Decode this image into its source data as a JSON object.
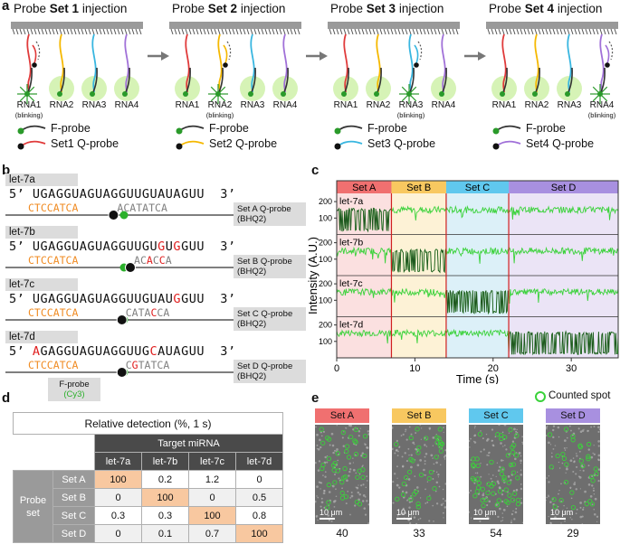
{
  "panels": {
    "a": "a",
    "b": "b",
    "c": "c",
    "d": "d",
    "e": "e"
  },
  "panel_a": {
    "steps": [
      {
        "prefix": "Probe ",
        "bold": "Set 1",
        "suffix": " injection",
        "blink": 0,
        "fprobe": "F-probe",
        "qprobe": "Set1 Q-probe",
        "qcolor": "#e03a3a"
      },
      {
        "prefix": "Probe ",
        "bold": "Set 2",
        "suffix": " injection",
        "blink": 1,
        "fprobe": "F-probe",
        "qprobe": "Set2 Q-probe",
        "qcolor": "#f5b800"
      },
      {
        "prefix": "Probe ",
        "bold": "Set 3",
        "suffix": " injection",
        "blink": 2,
        "fprobe": "F-probe",
        "qprobe": "Set3 Q-probe",
        "qcolor": "#38b6e0"
      },
      {
        "prefix": "Probe ",
        "bold": "Set 4",
        "suffix": " injection",
        "blink": 3,
        "fprobe": "F-probe",
        "qprobe": "Set4 Q-probe",
        "qcolor": "#a070d8"
      }
    ],
    "rna_labels": [
      "RNA1",
      "RNA2",
      "RNA3",
      "RNA4"
    ],
    "rna_colors": [
      "#e03a3a",
      "#f5b800",
      "#38b6e0",
      "#a070d8"
    ],
    "blinking": "(blinking)"
  },
  "panel_b": {
    "rows": [
      {
        "name": "let-7a",
        "target": [
          "UGAGGUAGUAGGUUGUAUAGUU"
        ],
        "red_idx": [],
        "f": "CTCCATCA",
        "q": "ACATATCA",
        "q_red": [],
        "qbox": [
          "Set A Q-probe",
          "(BHQ2)"
        ]
      },
      {
        "name": "let-7b",
        "target": [
          "UGAGGUAGUAGGUUGUGUGGUU"
        ],
        "red_idx": [
          16,
          18
        ],
        "f": "CTCCATCA",
        "q": "ACACCA",
        "q_red": [
          2,
          4
        ],
        "qbox": [
          "Set B Q-probe",
          "(BHQ2)"
        ]
      },
      {
        "name": "let-7c",
        "target": [
          "UGAGGUAGUAGGUUGUAUGGUU"
        ],
        "red_idx": [
          18
        ],
        "f": "CTCCATCA",
        "q": "CATACCA",
        "q_red": [
          4
        ],
        "qbox": [
          "Set C Q-probe",
          "(BHQ2)"
        ]
      },
      {
        "name": "let-7d",
        "target": [
          "AGAGGUAGUAGGUUGCAUAGUU"
        ],
        "red_idx": [
          0,
          15
        ],
        "f": "CTCCATCA",
        "q": "CGTATCA",
        "q_red": [
          1
        ],
        "qbox": [
          "Set D Q-probe",
          "(BHQ2)"
        ]
      }
    ],
    "five": "5’",
    "three": "3’",
    "fprobe_label": "F-probe",
    "fprobe_dye": "(Cy3)"
  },
  "chart_data": {
    "type": "line",
    "xlabel": "Time (s)",
    "ylabel": "Intensity (A.U.)",
    "xlim": [
      0,
      36
    ],
    "xticks": [
      0,
      10,
      20,
      30
    ],
    "yticks": [
      100,
      200
    ],
    "segments": [
      {
        "name": "Set A",
        "start": 0,
        "end": 7,
        "color": "#f07070",
        "bg": "#fbe0e0"
      },
      {
        "name": "Set B",
        "start": 7,
        "end": 14,
        "color": "#f8c860",
        "bg": "#fdf2d6"
      },
      {
        "name": "Set C",
        "start": 14,
        "end": 22,
        "color": "#60c8ee",
        "bg": "#dcf0f8"
      },
      {
        "name": "Set D",
        "start": 22,
        "end": 36,
        "color": "#a890e0",
        "bg": "#ebe4f6"
      }
    ],
    "traces": [
      {
        "name": "let-7a",
        "blink_set": 0,
        "high": 150,
        "low": 20
      },
      {
        "name": "let-7b",
        "blink_set": 1,
        "high": 150,
        "low": 20
      },
      {
        "name": "let-7c",
        "blink_set": 2,
        "high": 150,
        "low": 20
      },
      {
        "name": "let-7d",
        "blink_set": 3,
        "high": 150,
        "low": 20
      }
    ]
  },
  "panel_d": {
    "title": "Relative detection (%, 1 s)",
    "target_header": "Target miRNA",
    "probe_header": [
      "Probe",
      "set"
    ],
    "columns": [
      "let-7a",
      "let-7b",
      "let-7c",
      "let-7d"
    ],
    "rows": [
      {
        "set": "Set A",
        "values": [
          "100",
          "0.2",
          "1.2",
          "0"
        ]
      },
      {
        "set": "Set B",
        "values": [
          "0",
          "100",
          "0",
          "0.5"
        ]
      },
      {
        "set": "Set C",
        "values": [
          "0.3",
          "0.3",
          "100",
          "0.8"
        ]
      },
      {
        "set": "Set D",
        "values": [
          "0",
          "0.1",
          "0.7",
          "100"
        ]
      }
    ]
  },
  "panel_e": {
    "legend": "Counted spot",
    "scale": "10 μm",
    "images": [
      {
        "label": "Set A",
        "color": "#f07070",
        "count": "40"
      },
      {
        "label": "Set B",
        "color": "#f8c860",
        "count": "33"
      },
      {
        "label": "Set C",
        "color": "#60c8ee",
        "count": "54"
      },
      {
        "label": "Set D",
        "color": "#a890e0",
        "count": "29"
      }
    ]
  }
}
